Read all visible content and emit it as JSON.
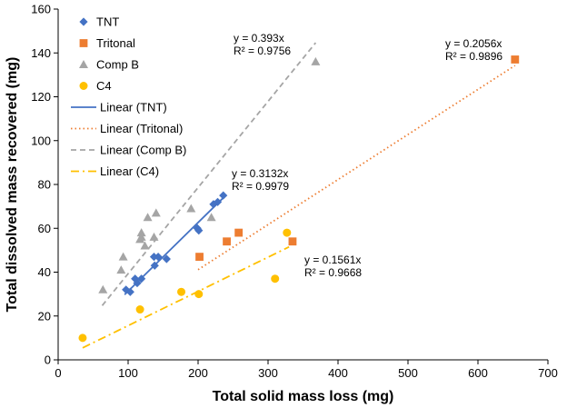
{
  "chart_data": {
    "type": "scatter",
    "xlabel": "Total solid mass loss (mg)",
    "ylabel": "Total dissolved mass recovered (mg)",
    "xlim": [
      0,
      700
    ],
    "ylim": [
      0,
      160
    ],
    "xticks": [
      0,
      100,
      200,
      300,
      400,
      500,
      600,
      700
    ],
    "yticks": [
      0,
      20,
      40,
      60,
      80,
      100,
      120,
      140,
      160
    ],
    "grid": false,
    "legend_position": "top-left",
    "series": [
      {
        "name": "TNT",
        "marker": "diamond",
        "color": "#4472C4",
        "points": [
          [
            97,
            32
          ],
          [
            103,
            31
          ],
          [
            110,
            37
          ],
          [
            113,
            35
          ],
          [
            119,
            37
          ],
          [
            137,
            47
          ],
          [
            138,
            43
          ],
          [
            143,
            47
          ],
          [
            155,
            46
          ],
          [
            199,
            60
          ],
          [
            201,
            59
          ],
          [
            222,
            71
          ],
          [
            228,
            72
          ],
          [
            236,
            75
          ]
        ]
      },
      {
        "name": "Tritonal",
        "marker": "square",
        "color": "#ED7D31",
        "points": [
          [
            202,
            47
          ],
          [
            241,
            54
          ],
          [
            258,
            58
          ],
          [
            335,
            54
          ],
          [
            653,
            137
          ]
        ]
      },
      {
        "name": "Comp B",
        "marker": "triangle",
        "color": "#A5A5A5",
        "points": [
          [
            64,
            32
          ],
          [
            90,
            41
          ],
          [
            93,
            47
          ],
          [
            117,
            55
          ],
          [
            119,
            58
          ],
          [
            119,
            56
          ],
          [
            124,
            52
          ],
          [
            128,
            65
          ],
          [
            137,
            56
          ],
          [
            140,
            67
          ],
          [
            190,
            69
          ],
          [
            219,
            65
          ],
          [
            368,
            136
          ]
        ]
      },
      {
        "name": "C4",
        "marker": "circle",
        "color": "#FFC000",
        "points": [
          [
            35,
            10
          ],
          [
            117,
            23
          ],
          [
            176,
            31
          ],
          [
            201,
            30
          ],
          [
            310,
            37
          ],
          [
            327,
            58
          ]
        ]
      }
    ],
    "trendlines": [
      {
        "name": "Linear (TNT)",
        "color": "#4472C4",
        "dash": "solid",
        "slope": 0.3132,
        "x_range": [
          95,
          237
        ],
        "equation": "y = 0.3132x",
        "r2": "R² = 0.9979"
      },
      {
        "name": "Linear (Tritonal)",
        "color": "#ED7D31",
        "dash": "dot",
        "slope": 0.2056,
        "x_range": [
          200,
          653
        ],
        "equation": "y = 0.2056x",
        "r2": "R² = 0.9896"
      },
      {
        "name": "Linear (Comp B)",
        "color": "#A5A5A5",
        "dash": "dash",
        "slope": 0.393,
        "x_range": [
          63,
          368
        ],
        "equation": "y = 0.393x",
        "r2": "R² = 0.9756"
      },
      {
        "name": "Linear (C4)",
        "color": "#FFC000",
        "dash": "dashdot",
        "slope": 0.1561,
        "x_range": [
          35,
          330
        ],
        "equation": "y = 0.1561x",
        "r2": "R² = 0.9668"
      }
    ]
  }
}
